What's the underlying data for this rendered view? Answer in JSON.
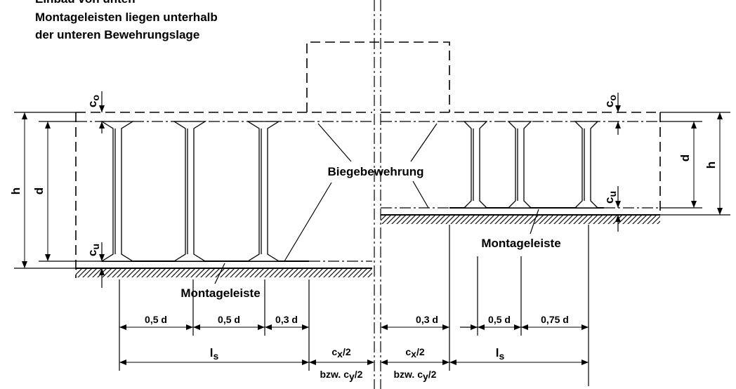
{
  "title_lines": [
    "Einbau von unten",
    "Montageleisten liegen unterhalb",
    "der unteren Bewehrungslage"
  ],
  "labels": {
    "reinforcement": "Biegebewehrung",
    "mounting_left": "Montageleiste",
    "mounting_right": "Montageleiste"
  },
  "left": {
    "h": "h",
    "d": "d",
    "c_o": {
      "base": "c",
      "sub": "o"
    },
    "c_u": {
      "base": "c",
      "sub": "u"
    },
    "spacing": [
      "0,5 d",
      "0,5 d",
      "0,3 d"
    ],
    "l_s": {
      "base": "l",
      "sub": "s"
    },
    "c_x": {
      "base": "c",
      "sub": "x",
      "tail": "/2"
    },
    "c_y": {
      "base": "bzw. c",
      "sub": "y",
      "tail": "/2"
    }
  },
  "right": {
    "h": "h",
    "d": "d",
    "c_o": {
      "base": "c",
      "sub": "o"
    },
    "c_u": {
      "base": "c",
      "sub": "u"
    },
    "spacing": [
      "0,3 d",
      "0,5 d",
      "0,75 d"
    ],
    "l_s": {
      "base": "l",
      "sub": "s"
    },
    "c_x": {
      "base": "c",
      "sub": "x",
      "tail": "/2"
    },
    "c_y": {
      "base": "bzw. c",
      "sub": "y",
      "tail": "/2"
    }
  }
}
